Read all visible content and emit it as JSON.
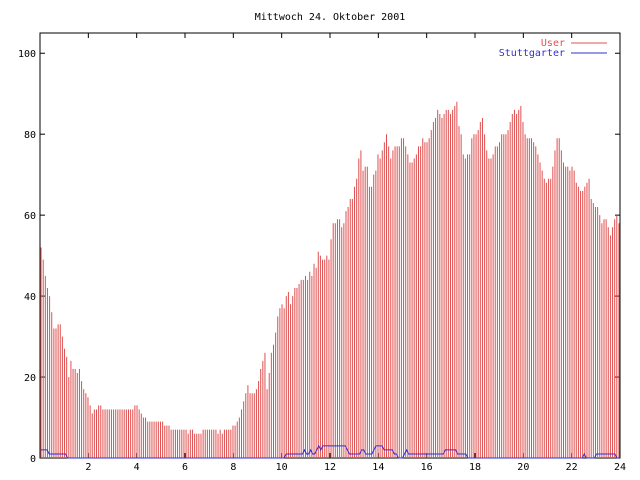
{
  "chart_data": {
    "type": "bar",
    "title": "Mittwoch 24. Oktober 2001",
    "xlabel": "",
    "ylabel": "",
    "xlim": [
      0,
      24
    ],
    "ylim": [
      0,
      105
    ],
    "x_ticks": [
      2,
      4,
      6,
      8,
      10,
      12,
      14,
      16,
      18,
      20,
      22,
      24
    ],
    "y_ticks": [
      0,
      20,
      40,
      60,
      80,
      100
    ],
    "grid": false,
    "legend_position": "top-right",
    "interval_hours": 0.0833,
    "series": [
      {
        "name": "User",
        "color": "#e05050",
        "style": "impulses",
        "values": [
          52,
          49,
          45,
          42,
          40,
          36,
          32,
          32,
          33,
          33,
          30,
          27,
          25,
          20,
          24,
          22,
          22,
          21,
          22,
          19,
          17,
          16,
          15,
          13,
          11,
          12,
          12,
          13,
          13,
          12,
          12,
          12,
          12,
          12,
          12,
          12,
          12,
          12,
          12,
          12,
          12,
          12,
          12,
          12,
          13,
          13,
          12,
          11,
          10,
          10,
          9,
          9,
          9,
          9,
          9,
          9,
          9,
          9,
          8,
          8,
          8,
          7,
          7,
          7,
          7,
          7,
          7,
          7,
          7,
          6,
          7,
          7,
          6,
          6,
          6,
          6,
          7,
          7,
          7,
          7,
          7,
          7,
          7,
          6,
          7,
          6,
          7,
          7,
          7,
          7,
          8,
          8,
          9,
          10,
          12,
          14,
          16,
          18,
          16,
          16,
          16,
          17,
          19,
          22,
          24,
          26,
          17,
          21,
          26,
          28,
          31,
          35,
          37,
          38,
          37,
          40,
          41,
          38,
          40,
          42,
          42,
          43,
          44,
          44,
          45,
          44,
          46,
          45,
          48,
          47,
          51,
          50,
          49,
          49,
          50,
          49,
          54,
          58,
          58,
          59,
          59,
          57,
          58,
          61,
          62,
          64,
          64,
          67,
          69,
          74,
          76,
          71,
          72,
          72,
          67,
          67,
          70,
          71,
          75,
          74,
          76,
          78,
          80,
          77,
          74,
          76,
          77,
          77,
          77,
          79,
          79,
          77,
          75,
          73,
          73,
          74,
          75,
          77,
          77,
          79,
          78,
          78,
          79,
          81,
          83,
          84,
          86,
          85,
          84,
          85,
          86,
          86,
          85,
          86,
          87,
          88,
          82,
          80,
          75,
          74,
          75,
          75,
          79,
          80,
          80,
          81,
          83,
          84,
          80,
          76,
          74,
          74,
          75,
          77,
          77,
          78,
          80,
          80,
          80,
          81,
          83,
          85,
          86,
          85,
          86,
          87,
          83,
          80,
          79,
          79,
          79,
          78,
          77,
          75,
          73,
          71,
          69,
          68,
          69,
          69,
          72,
          76,
          79,
          79,
          76,
          73,
          72,
          72,
          71,
          72,
          71,
          68,
          67,
          66,
          66,
          67,
          68,
          69,
          64,
          63,
          62,
          62,
          60,
          58,
          59,
          59,
          57,
          55,
          57,
          59,
          60,
          58
        ]
      },
      {
        "name": "Stuttgarter",
        "color": "#3030d0",
        "style": "lines",
        "values": [
          2,
          2,
          2,
          2,
          1,
          1,
          1,
          1,
          1,
          1,
          1,
          1,
          1,
          0,
          0,
          0,
          0,
          0,
          0,
          0,
          0,
          0,
          0,
          0,
          0,
          0,
          0,
          0,
          0,
          0,
          0,
          0,
          0,
          0,
          0,
          0,
          0,
          0,
          0,
          0,
          0,
          0,
          0,
          0,
          0,
          0,
          0,
          0,
          0,
          0,
          0,
          0,
          0,
          0,
          0,
          0,
          0,
          0,
          0,
          0,
          0,
          0,
          0,
          0,
          0,
          0,
          0,
          0,
          0,
          0,
          0,
          0,
          0,
          0,
          0,
          0,
          0,
          0,
          0,
          0,
          0,
          0,
          0,
          0,
          0,
          0,
          0,
          0,
          0,
          0,
          0,
          0,
          0,
          0,
          0,
          0,
          0,
          0,
          0,
          0,
          0,
          0,
          0,
          0,
          0,
          0,
          0,
          0,
          0,
          0,
          0,
          0,
          0,
          0,
          0,
          0,
          0,
          0,
          0,
          0,
          1,
          1,
          1,
          1,
          1,
          1,
          1,
          1,
          1,
          2,
          1,
          1,
          2,
          1,
          1,
          2,
          3,
          2,
          3,
          3,
          3,
          3,
          3,
          3,
          3,
          3,
          3,
          3,
          3,
          3,
          2,
          1,
          1,
          1,
          1,
          1,
          1,
          2,
          2,
          1,
          1,
          1,
          1,
          2,
          3,
          3,
          3,
          3,
          2,
          2,
          2,
          2,
          2,
          1,
          1,
          0,
          0,
          0,
          1,
          2,
          1,
          1,
          1,
          1,
          1,
          1,
          1,
          1,
          1,
          1,
          1,
          1,
          1,
          1,
          1,
          1,
          1,
          1,
          2,
          2,
          2,
          2,
          2,
          2,
          1,
          1,
          1,
          1,
          1,
          0,
          0,
          0,
          0,
          0,
          0,
          0,
          0,
          0,
          0,
          0,
          0,
          0,
          0,
          0,
          0,
          0,
          0,
          0,
          0,
          0,
          0,
          0,
          0,
          0,
          0,
          0,
          0,
          0,
          0,
          0,
          0,
          0,
          0,
          0,
          0,
          0,
          0,
          0,
          0,
          0,
          0,
          0,
          0,
          0,
          0,
          0,
          0,
          0,
          0,
          0,
          0,
          0,
          0,
          0,
          0,
          0,
          1,
          0,
          0,
          0,
          0,
          0,
          1,
          1,
          1,
          1,
          1,
          1,
          1,
          1,
          1,
          1,
          0,
          0
        ]
      }
    ]
  }
}
